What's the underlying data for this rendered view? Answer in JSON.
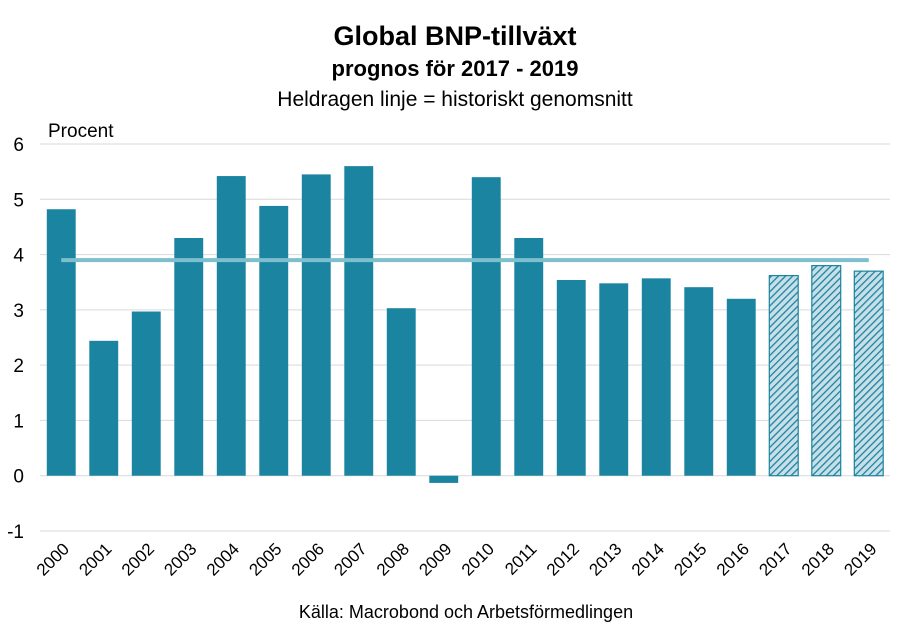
{
  "chart_data": {
    "type": "bar",
    "title": "Global BNP-tillväxt",
    "subtitle": "prognos för 2017 - 2019",
    "subtitle2": "Heldragen linje = historiskt genomsnitt",
    "ylabel": "Procent",
    "source": "Källa: Macrobond och Arbetsförmedlingen",
    "ylim": [
      -1,
      6
    ],
    "yticks": [
      -1,
      0,
      1,
      2,
      3,
      4,
      5,
      6
    ],
    "grid": true,
    "categories": [
      "2000",
      "2001",
      "2002",
      "2003",
      "2004",
      "2005",
      "2006",
      "2007",
      "2008",
      "2009",
      "2010",
      "2011",
      "2012",
      "2013",
      "2014",
      "2015",
      "2016",
      "2017",
      "2018",
      "2019"
    ],
    "values": [
      4.82,
      2.44,
      2.97,
      4.3,
      5.42,
      4.88,
      5.45,
      5.6,
      3.03,
      -0.13,
      5.4,
      4.3,
      3.54,
      3.48,
      3.57,
      3.41,
      3.2,
      3.62,
      3.8,
      3.7
    ],
    "forecast": [
      "2017",
      "2018",
      "2019"
    ],
    "reference_line": {
      "value": 3.9
    },
    "colors": {
      "bar": "#1a84a1",
      "forecast_bg": "#c8dfe8",
      "reference_line": "#7ebfce",
      "grid": "#d9d9d9"
    }
  }
}
